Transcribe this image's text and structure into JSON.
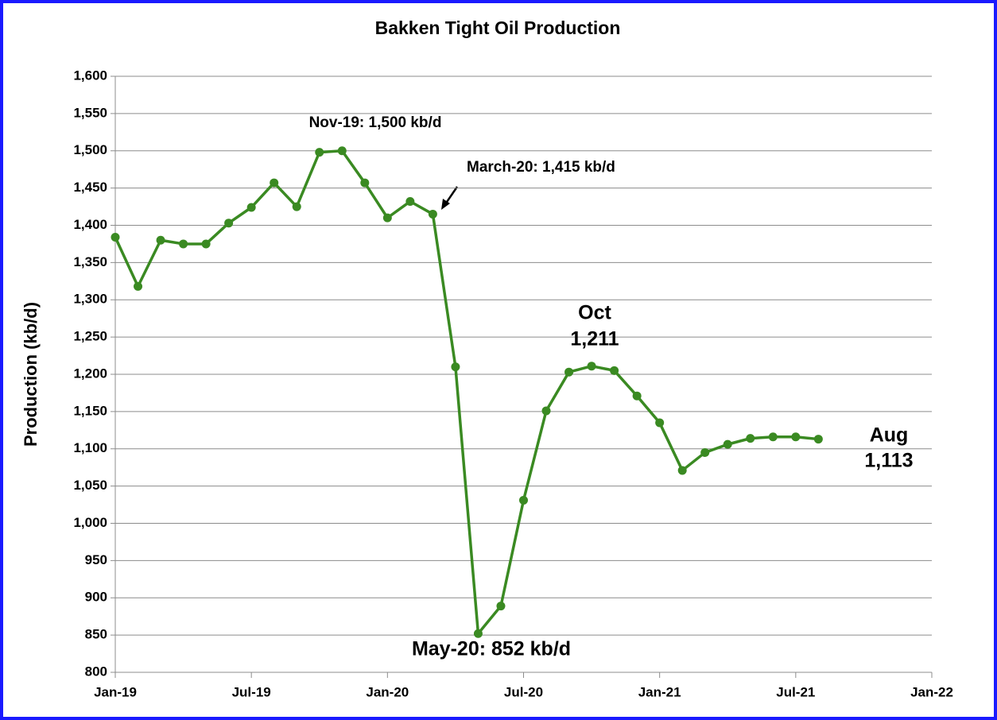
{
  "chart_data": {
    "type": "line",
    "title": "Bakken Tight Oil Production",
    "y_label": "Production (kb/d)",
    "x": [
      "2019-01",
      "2019-02",
      "2019-03",
      "2019-04",
      "2019-05",
      "2019-06",
      "2019-07",
      "2019-08",
      "2019-09",
      "2019-10",
      "2019-11",
      "2019-12",
      "2020-01",
      "2020-02",
      "2020-03",
      "2020-04",
      "2020-05",
      "2020-06",
      "2020-07",
      "2020-08",
      "2020-09",
      "2020-10",
      "2020-11",
      "2020-12",
      "2021-01",
      "2021-02",
      "2021-03",
      "2021-04",
      "2021-05",
      "2021-06",
      "2021-07",
      "2021-08"
    ],
    "series": [
      {
        "name": "Bakken",
        "color": "#3a8a22",
        "values": [
          1384,
          1318,
          1380,
          1375,
          1375,
          1403,
          1424,
          1457,
          1425,
          1498,
          1500,
          1457,
          1410,
          1432,
          1415,
          1210,
          852,
          889,
          1031,
          1151,
          1203,
          1211,
          1205,
          1171,
          1135,
          1071,
          1095,
          1106,
          1114,
          1116,
          1116,
          1113
        ]
      }
    ],
    "xlim": [
      "2019-01",
      "2022-01"
    ],
    "xticks": [
      {
        "value": "2019-01",
        "label": "Jan-19"
      },
      {
        "value": "2019-07",
        "label": "Jul-19"
      },
      {
        "value": "2020-01",
        "label": "Jan-20"
      },
      {
        "value": "2020-07",
        "label": "Jul-20"
      },
      {
        "value": "2021-01",
        "label": "Jan-21"
      },
      {
        "value": "2021-07",
        "label": "Jul-21"
      },
      {
        "value": "2022-01",
        "label": "Jan-22"
      }
    ],
    "ylim": [
      800,
      1600
    ],
    "yticks": [
      800,
      850,
      900,
      950,
      {
        "value": 1000,
        "label": "1,000"
      },
      {
        "value": 1050,
        "label": "1,050"
      },
      {
        "value": 1100,
        "label": "1,100"
      },
      {
        "value": 1150,
        "label": "1,150"
      },
      {
        "value": 1200,
        "label": "1,200"
      },
      {
        "value": 1250,
        "label": "1,250"
      },
      {
        "value": 1300,
        "label": "1,300"
      },
      {
        "value": 1350,
        "label": "1,350"
      },
      {
        "value": 1400,
        "label": "1,400"
      },
      {
        "value": 1450,
        "label": "1,450"
      },
      {
        "value": 1500,
        "label": "1,500"
      },
      {
        "value": 1550,
        "label": "1,550"
      },
      {
        "value": 1600,
        "label": "1,600"
      }
    ],
    "grid": true,
    "annotations": [
      {
        "lines": [
          "Nov-19: 1,500 kb/d"
        ]
      },
      {
        "lines": [
          "March-20: 1,415 kb/d"
        ]
      },
      {
        "lines": [
          "Oct",
          "1,211"
        ]
      },
      {
        "lines": [
          "May-20: 852 kb/d"
        ]
      },
      {
        "lines": [
          "Aug",
          "1,113"
        ]
      }
    ]
  }
}
